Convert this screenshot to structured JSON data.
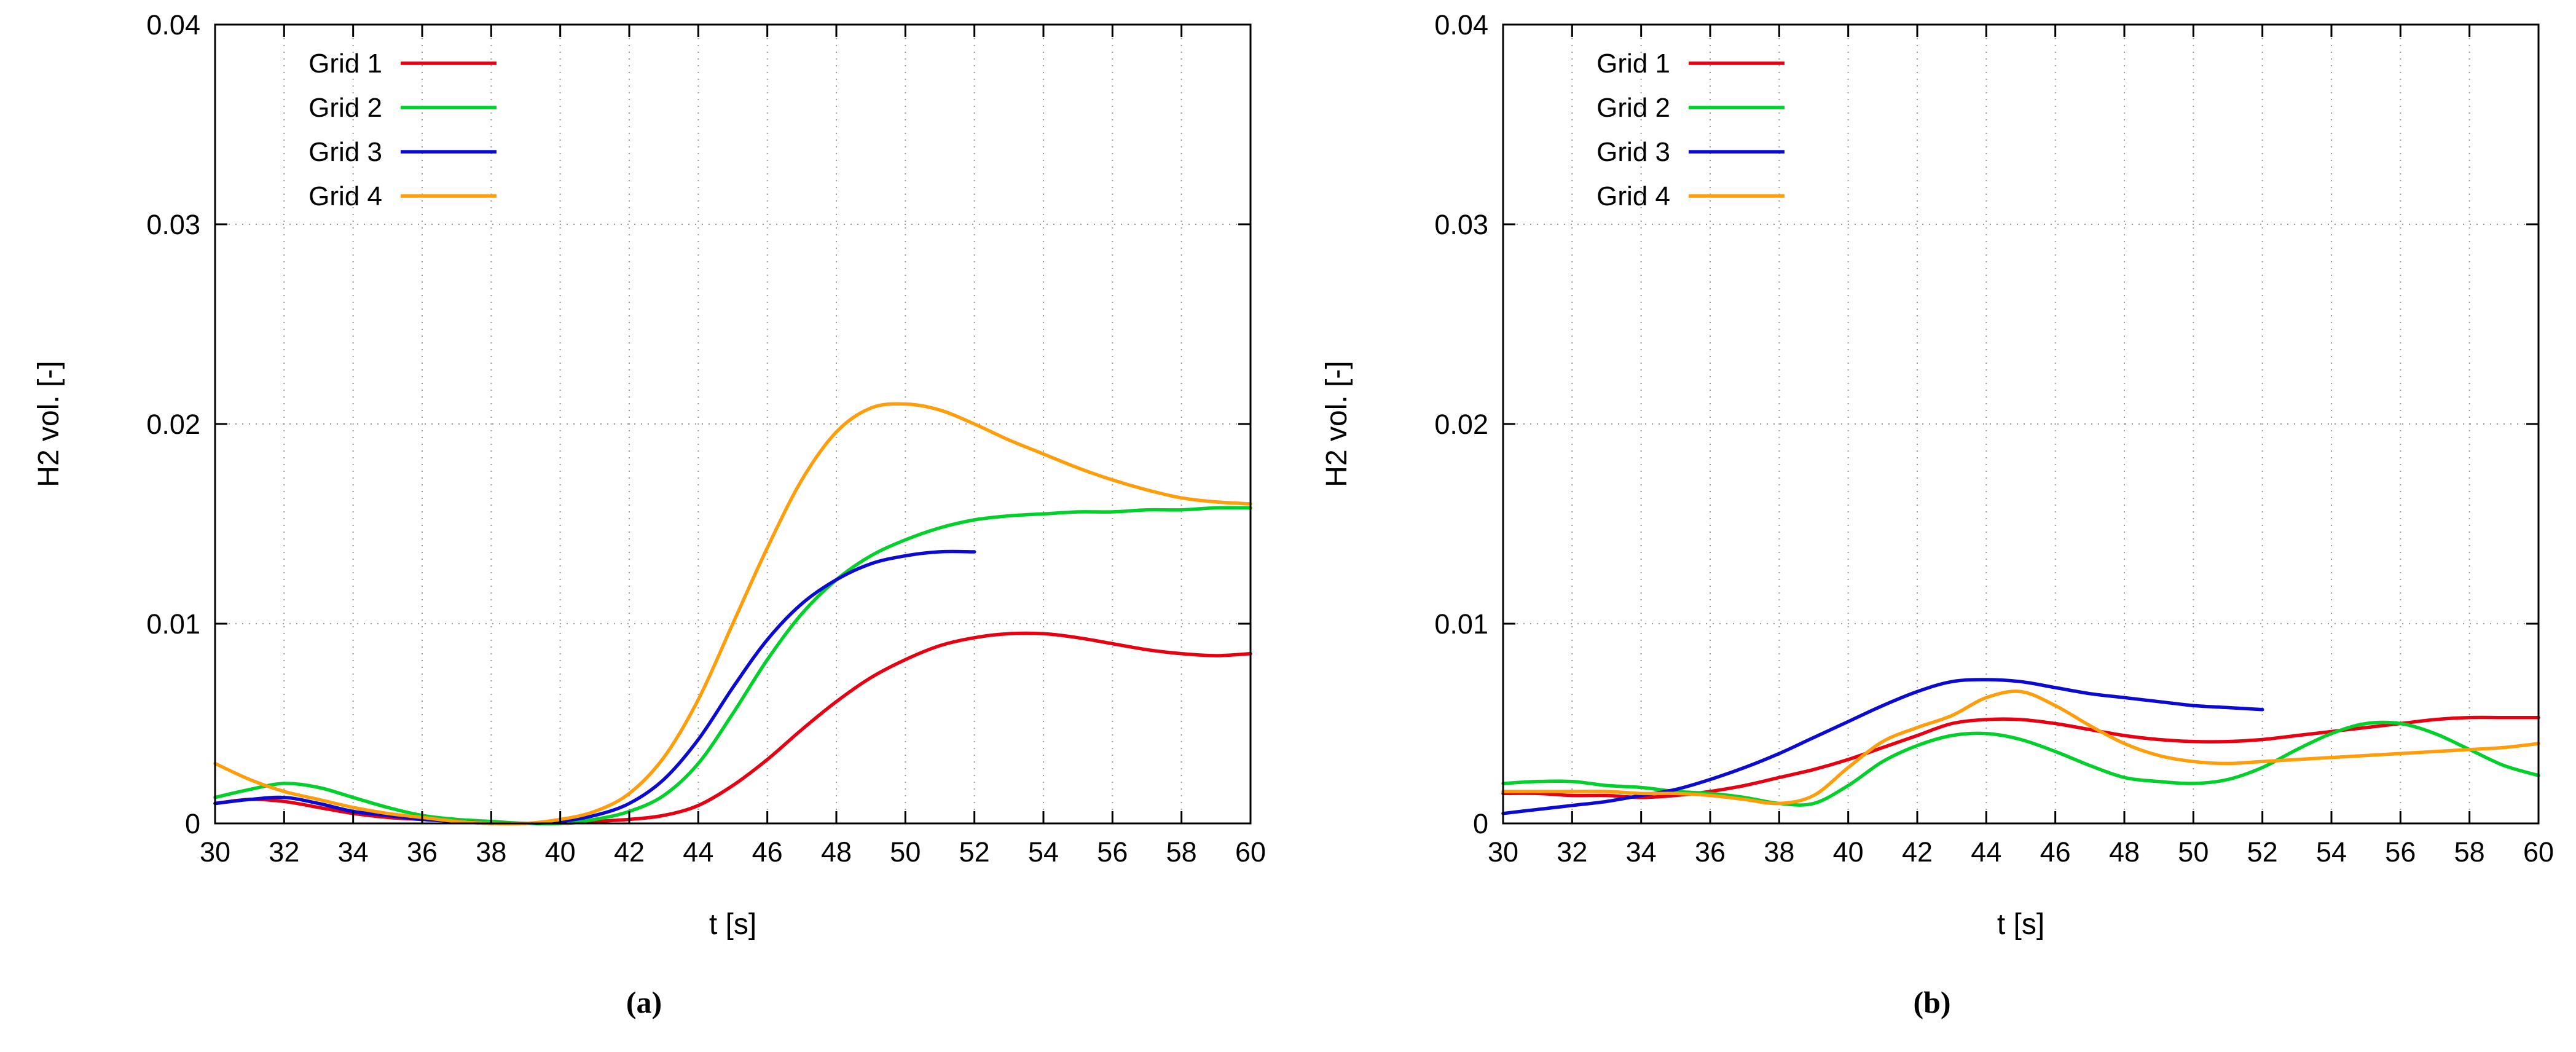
{
  "figure": {
    "background": "#ffffff",
    "grid_color": "#9a9a9a"
  },
  "chart_data": [
    {
      "type": "line",
      "panel_label": "(a)",
      "xlabel": "t [s]",
      "ylabel": "H2 vol. [-]",
      "xlim": [
        30,
        60
      ],
      "ylim": [
        0,
        0.04
      ],
      "xticks": [
        30,
        32,
        34,
        36,
        38,
        40,
        42,
        44,
        46,
        48,
        50,
        52,
        54,
        56,
        58,
        60
      ],
      "yticks": [
        0,
        0.01,
        0.02,
        0.03,
        0.04
      ],
      "ytick_labels": [
        "0",
        "0.01",
        "0.02",
        "0.03",
        "0.04"
      ],
      "grid": true,
      "legend_position": "top-left",
      "series": [
        {
          "name": "Grid 1",
          "color": "#e60012",
          "x": [
            30,
            31,
            32,
            33,
            34,
            35,
            36,
            37,
            38,
            39,
            40,
            41,
            42,
            43,
            44,
            45,
            46,
            47,
            48,
            49,
            50,
            51,
            52,
            53,
            54,
            55,
            56,
            57,
            58,
            59,
            60
          ],
          "y": [
            0.001,
            0.0012,
            0.0011,
            0.0008,
            0.0005,
            0.0003,
            0.0002,
            0.0001,
            0.0,
            0.0,
            0.0,
            0.0001,
            0.0002,
            0.0004,
            0.0009,
            0.0019,
            0.0032,
            0.0047,
            0.0061,
            0.0073,
            0.0082,
            0.0089,
            0.0093,
            0.0095,
            0.0095,
            0.0093,
            0.009,
            0.0087,
            0.0085,
            0.0084,
            0.0085
          ]
        },
        {
          "name": "Grid 2",
          "color": "#00d02a",
          "x": [
            30,
            31,
            32,
            33,
            34,
            35,
            36,
            37,
            38,
            39,
            40,
            41,
            42,
            43,
            44,
            45,
            46,
            47,
            48,
            49,
            50,
            51,
            52,
            53,
            54,
            55,
            56,
            57,
            58,
            59,
            60
          ],
          "y": [
            0.0013,
            0.0017,
            0.002,
            0.0018,
            0.0013,
            0.0008,
            0.0004,
            0.0002,
            0.0001,
            0.0,
            0.0,
            0.0002,
            0.0006,
            0.0014,
            0.003,
            0.0055,
            0.0082,
            0.0105,
            0.0122,
            0.0134,
            0.0142,
            0.0148,
            0.0152,
            0.0154,
            0.0155,
            0.0156,
            0.0156,
            0.0157,
            0.0157,
            0.0158,
            0.0158
          ]
        },
        {
          "name": "Grid 3",
          "color": "#0a0ad2",
          "x": [
            30,
            31,
            32,
            33,
            34,
            35,
            36,
            37,
            38,
            39,
            40,
            41,
            42,
            43,
            44,
            45,
            46,
            47,
            48,
            49,
            50,
            51,
            52
          ],
          "y": [
            0.001,
            0.0012,
            0.0013,
            0.001,
            0.0006,
            0.0004,
            0.0002,
            0.0001,
            0.0,
            0.0,
            0.0001,
            0.0004,
            0.001,
            0.0022,
            0.0042,
            0.0068,
            0.0092,
            0.011,
            0.0122,
            0.013,
            0.0134,
            0.0136,
            0.0136
          ]
        },
        {
          "name": "Grid 4",
          "color": "#ff9d0a",
          "x": [
            30,
            31,
            32,
            33,
            34,
            35,
            36,
            37,
            38,
            39,
            40,
            41,
            42,
            43,
            44,
            45,
            46,
            47,
            48,
            49,
            50,
            51,
            52,
            53,
            54,
            55,
            56,
            57,
            58,
            59,
            60
          ],
          "y": [
            0.003,
            0.0022,
            0.0016,
            0.0012,
            0.0008,
            0.0005,
            0.0003,
            0.0001,
            0.0,
            0.0,
            0.0002,
            0.0006,
            0.0015,
            0.0033,
            0.0062,
            0.01,
            0.0138,
            0.0172,
            0.0196,
            0.0208,
            0.021,
            0.0207,
            0.02,
            0.0192,
            0.0185,
            0.0178,
            0.0172,
            0.0167,
            0.0163,
            0.0161,
            0.016
          ]
        }
      ]
    },
    {
      "type": "line",
      "panel_label": "(b)",
      "xlabel": "t [s]",
      "ylabel": "H2 vol. [-]",
      "xlim": [
        30,
        60
      ],
      "ylim": [
        0,
        0.04
      ],
      "xticks": [
        30,
        32,
        34,
        36,
        38,
        40,
        42,
        44,
        46,
        48,
        50,
        52,
        54,
        56,
        58,
        60
      ],
      "yticks": [
        0,
        0.01,
        0.02,
        0.03,
        0.04
      ],
      "ytick_labels": [
        "0",
        "0.01",
        "0.02",
        "0.03",
        "0.04"
      ],
      "grid": true,
      "legend_position": "top-left",
      "series": [
        {
          "name": "Grid 1",
          "color": "#e60012",
          "x": [
            30,
            31,
            32,
            33,
            34,
            35,
            36,
            37,
            38,
            39,
            40,
            41,
            42,
            43,
            44,
            45,
            46,
            47,
            48,
            49,
            50,
            51,
            52,
            53,
            54,
            55,
            56,
            57,
            58,
            59,
            60
          ],
          "y": [
            0.0015,
            0.0015,
            0.0014,
            0.0014,
            0.0013,
            0.0014,
            0.0016,
            0.0019,
            0.0023,
            0.0027,
            0.0032,
            0.0038,
            0.0044,
            0.005,
            0.0052,
            0.0052,
            0.005,
            0.0047,
            0.0044,
            0.0042,
            0.0041,
            0.0041,
            0.0042,
            0.0044,
            0.0046,
            0.0048,
            0.005,
            0.0052,
            0.0053,
            0.0053,
            0.0053
          ]
        },
        {
          "name": "Grid 2",
          "color": "#00d02a",
          "x": [
            30,
            31,
            32,
            33,
            34,
            35,
            36,
            37,
            38,
            39,
            40,
            41,
            42,
            43,
            44,
            45,
            46,
            47,
            48,
            49,
            50,
            51,
            52,
            53,
            54,
            55,
            56,
            57,
            58,
            59,
            60
          ],
          "y": [
            0.002,
            0.0021,
            0.0021,
            0.0019,
            0.0018,
            0.0016,
            0.0015,
            0.0013,
            0.001,
            0.001,
            0.0019,
            0.0031,
            0.0039,
            0.0044,
            0.0045,
            0.0042,
            0.0036,
            0.0029,
            0.0023,
            0.0021,
            0.002,
            0.0022,
            0.0028,
            0.0037,
            0.0045,
            0.005,
            0.005,
            0.0045,
            0.0037,
            0.0029,
            0.0024
          ]
        },
        {
          "name": "Grid 3",
          "color": "#0a0ad2",
          "x": [
            30,
            31,
            32,
            33,
            34,
            35,
            36,
            37,
            38,
            39,
            40,
            41,
            42,
            43,
            44,
            45,
            46,
            47,
            48,
            49,
            50,
            51,
            52
          ],
          "y": [
            0.0005,
            0.0007,
            0.0009,
            0.0011,
            0.0014,
            0.0017,
            0.0022,
            0.0028,
            0.0035,
            0.0043,
            0.0051,
            0.0059,
            0.0066,
            0.0071,
            0.0072,
            0.0071,
            0.0068,
            0.0065,
            0.0063,
            0.0061,
            0.0059,
            0.0058,
            0.0057
          ]
        },
        {
          "name": "Grid 4",
          "color": "#ff9d0a",
          "x": [
            30,
            31,
            32,
            33,
            34,
            35,
            36,
            37,
            38,
            39,
            40,
            41,
            42,
            43,
            44,
            45,
            46,
            47,
            48,
            49,
            50,
            51,
            52,
            53,
            54,
            55,
            56,
            57,
            58,
            59,
            60
          ],
          "y": [
            0.0016,
            0.0016,
            0.0016,
            0.0016,
            0.0015,
            0.0015,
            0.0014,
            0.0012,
            0.001,
            0.0014,
            0.0028,
            0.0041,
            0.0048,
            0.0054,
            0.0063,
            0.0066,
            0.0059,
            0.0049,
            0.004,
            0.0034,
            0.0031,
            0.003,
            0.0031,
            0.0032,
            0.0033,
            0.0034,
            0.0035,
            0.0036,
            0.0037,
            0.0038,
            0.004
          ]
        }
      ]
    }
  ]
}
